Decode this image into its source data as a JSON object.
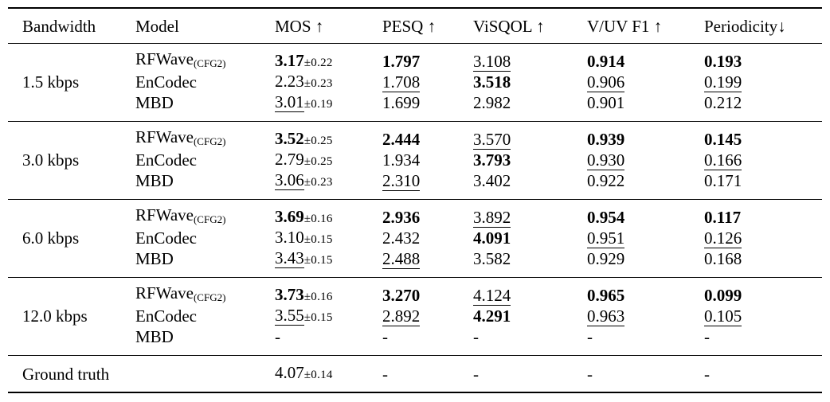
{
  "table": {
    "columns": [
      {
        "key": "bandwidth",
        "label": "Bandwidth"
      },
      {
        "key": "model",
        "label": "Model"
      },
      {
        "key": "mos",
        "label": "MOS ↑"
      },
      {
        "key": "pesq",
        "label": "PESQ ↑"
      },
      {
        "key": "visqol",
        "label": "ViSQOL ↑"
      },
      {
        "key": "vuv_f1",
        "label": "V/UV F1 ↑"
      },
      {
        "key": "periodicity",
        "label": "Periodicity↓"
      }
    ],
    "metric_keys": [
      "mos",
      "pesq",
      "visqol",
      "vuv_f1",
      "periodicity"
    ],
    "groups": [
      {
        "bandwidth": "1.5 kbps",
        "rows": [
          {
            "model": "RFWave",
            "model_sub": "(CFG2)",
            "mos": {
              "value": "3.17",
              "pm": "±0.22",
              "style": "bold"
            },
            "pesq": {
              "value": "1.797",
              "style": "bold"
            },
            "visqol": {
              "value": "3.108",
              "style": "underline"
            },
            "vuv_f1": {
              "value": "0.914",
              "style": "bold"
            },
            "periodicity": {
              "value": "0.193",
              "style": "bold"
            }
          },
          {
            "model": "EnCodec",
            "mos": {
              "value": "2.23",
              "pm": "±0.23",
              "style": "normal"
            },
            "pesq": {
              "value": "1.708",
              "style": "underline"
            },
            "visqol": {
              "value": "3.518",
              "style": "bold"
            },
            "vuv_f1": {
              "value": "0.906",
              "style": "underline"
            },
            "periodicity": {
              "value": "0.199",
              "style": "underline"
            }
          },
          {
            "model": "MBD",
            "mos": {
              "value": "3.01",
              "pm": "±0.19",
              "style": "underline"
            },
            "pesq": {
              "value": "1.699",
              "style": "normal"
            },
            "visqol": {
              "value": "2.982",
              "style": "normal"
            },
            "vuv_f1": {
              "value": "0.901",
              "style": "normal"
            },
            "periodicity": {
              "value": "0.212",
              "style": "normal"
            }
          }
        ]
      },
      {
        "bandwidth": "3.0 kbps",
        "rows": [
          {
            "model": "RFWave",
            "model_sub": "(CFG2)",
            "mos": {
              "value": "3.52",
              "pm": "±0.25",
              "style": "bold"
            },
            "pesq": {
              "value": "2.444",
              "style": "bold"
            },
            "visqol": {
              "value": "3.570",
              "style": "underline"
            },
            "vuv_f1": {
              "value": "0.939",
              "style": "bold"
            },
            "periodicity": {
              "value": "0.145",
              "style": "bold"
            }
          },
          {
            "model": "EnCodec",
            "mos": {
              "value": "2.79",
              "pm": "±0.25",
              "style": "normal"
            },
            "pesq": {
              "value": "1.934",
              "style": "normal"
            },
            "visqol": {
              "value": "3.793",
              "style": "bold"
            },
            "vuv_f1": {
              "value": "0.930",
              "style": "underline"
            },
            "periodicity": {
              "value": "0.166",
              "style": "underline"
            }
          },
          {
            "model": "MBD",
            "mos": {
              "value": "3.06",
              "pm": "±0.23",
              "style": "underline"
            },
            "pesq": {
              "value": "2.310",
              "style": "underline"
            },
            "visqol": {
              "value": "3.402",
              "style": "normal"
            },
            "vuv_f1": {
              "value": "0.922",
              "style": "normal"
            },
            "periodicity": {
              "value": "0.171",
              "style": "normal"
            }
          }
        ]
      },
      {
        "bandwidth": "6.0 kbps",
        "rows": [
          {
            "model": "RFWave",
            "model_sub": "(CFG2)",
            "mos": {
              "value": "3.69",
              "pm": "±0.16",
              "style": "bold"
            },
            "pesq": {
              "value": "2.936",
              "style": "bold"
            },
            "visqol": {
              "value": "3.892",
              "style": "underline"
            },
            "vuv_f1": {
              "value": "0.954",
              "style": "bold"
            },
            "periodicity": {
              "value": "0.117",
              "style": "bold"
            }
          },
          {
            "model": "EnCodec",
            "mos": {
              "value": "3.10",
              "pm": "±0.15",
              "style": "normal"
            },
            "pesq": {
              "value": "2.432",
              "style": "normal"
            },
            "visqol": {
              "value": "4.091",
              "style": "bold"
            },
            "vuv_f1": {
              "value": "0.951",
              "style": "underline"
            },
            "periodicity": {
              "value": "0.126",
              "style": "underline"
            }
          },
          {
            "model": "MBD",
            "mos": {
              "value": "3.43",
              "pm": "±0.15",
              "style": "underline"
            },
            "pesq": {
              "value": "2.488",
              "style": "underline"
            },
            "visqol": {
              "value": "3.582",
              "style": "normal"
            },
            "vuv_f1": {
              "value": "0.929",
              "style": "normal"
            },
            "periodicity": {
              "value": "0.168",
              "style": "normal"
            }
          }
        ]
      },
      {
        "bandwidth": "12.0 kbps",
        "rows": [
          {
            "model": "RFWave",
            "model_sub": "(CFG2)",
            "mos": {
              "value": "3.73",
              "pm": "±0.16",
              "style": "bold"
            },
            "pesq": {
              "value": "3.270",
              "style": "bold"
            },
            "visqol": {
              "value": "4.124",
              "style": "underline"
            },
            "vuv_f1": {
              "value": "0.965",
              "style": "bold"
            },
            "periodicity": {
              "value": "0.099",
              "style": "bold"
            }
          },
          {
            "model": "EnCodec",
            "mos": {
              "value": "3.55",
              "pm": "±0.15",
              "style": "underline"
            },
            "pesq": {
              "value": "2.892",
              "style": "underline"
            },
            "visqol": {
              "value": "4.291",
              "style": "bold"
            },
            "vuv_f1": {
              "value": "0.963",
              "style": "underline"
            },
            "periodicity": {
              "value": "0.105",
              "style": "underline"
            }
          },
          {
            "model": "MBD",
            "mos": {
              "value": "-",
              "style": "normal"
            },
            "pesq": {
              "value": "-",
              "style": "normal"
            },
            "visqol": {
              "value": "-",
              "style": "normal"
            },
            "vuv_f1": {
              "value": "-",
              "style": "normal"
            },
            "periodicity": {
              "value": "-",
              "style": "normal"
            }
          }
        ]
      }
    ],
    "footer": {
      "label": "Ground truth",
      "mos": {
        "value": "4.07",
        "pm": "±0.14",
        "style": "normal"
      },
      "pesq": {
        "value": "-",
        "style": "normal"
      },
      "visqol": {
        "value": "-",
        "style": "normal"
      },
      "vuv_f1": {
        "value": "-",
        "style": "normal"
      },
      "periodicity": {
        "value": "-",
        "style": "normal"
      }
    },
    "colors": {
      "text": "#000000",
      "background": "#ffffff",
      "rule": "#000000"
    }
  }
}
